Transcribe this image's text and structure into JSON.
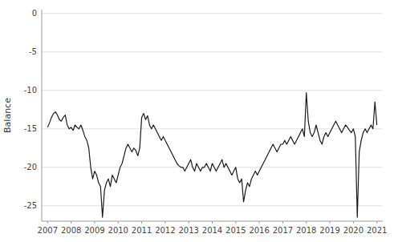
{
  "chart_data": {
    "type": "line",
    "ylabel": "Balance",
    "color": "#1a1a1a",
    "grid": true,
    "xlim": [
      2006.75,
      2021.25
    ],
    "xticks": [
      2007,
      2008,
      2009,
      2010,
      2011,
      2012,
      2013,
      2014,
      2015,
      2016,
      2017,
      2018,
      2019,
      2020,
      2021
    ],
    "ylim": [
      -27,
      0.5
    ],
    "yticks": [
      0,
      -5,
      -10,
      -15,
      -20,
      -25
    ],
    "x": [
      2007,
      2007.0833333333333,
      2007.1666666666667,
      2007.25,
      2007.3333333333333,
      2007.4166666666667,
      2007.5,
      2007.5833333333333,
      2007.6666666666667,
      2007.75,
      2007.8333333333333,
      2007.9166666666667,
      2008,
      2008.0833333333333,
      2008.1666666666667,
      2008.25,
      2008.3333333333333,
      2008.4166666666667,
      2008.5,
      2008.5833333333333,
      2008.6666666666667,
      2008.75,
      2008.8333333333333,
      2008.9166666666667,
      2009,
      2009.0833333333333,
      2009.1666666666667,
      2009.25,
      2009.3333333333333,
      2009.4166666666667,
      2009.5,
      2009.5833333333333,
      2009.6666666666667,
      2009.75,
      2009.8333333333333,
      2009.9166666666667,
      2010,
      2010.0833333333333,
      2010.1666666666667,
      2010.25,
      2010.3333333333333,
      2010.4166666666667,
      2010.5,
      2010.5833333333333,
      2010.6666666666667,
      2010.75,
      2010.8333333333333,
      2010.9166666666667,
      2011,
      2011.0833333333333,
      2011.1666666666667,
      2011.25,
      2011.3333333333333,
      2011.4166666666667,
      2011.5,
      2011.5833333333333,
      2011.6666666666667,
      2011.75,
      2011.8333333333333,
      2011.9166666666667,
      2012,
      2012.0833333333333,
      2012.1666666666667,
      2012.25,
      2012.3333333333333,
      2012.4166666666667,
      2012.5,
      2012.5833333333333,
      2012.6666666666667,
      2012.75,
      2012.8333333333333,
      2012.9166666666667,
      2013,
      2013.0833333333333,
      2013.1666666666667,
      2013.25,
      2013.3333333333333,
      2013.4166666666667,
      2013.5,
      2013.5833333333333,
      2013.6666666666667,
      2013.75,
      2013.8333333333333,
      2013.9166666666667,
      2014,
      2014.0833333333333,
      2014.1666666666667,
      2014.25,
      2014.3333333333333,
      2014.4166666666667,
      2014.5,
      2014.5833333333333,
      2014.6666666666667,
      2014.75,
      2014.8333333333333,
      2014.9166666666667,
      2015,
      2015.0833333333333,
      2015.1666666666667,
      2015.25,
      2015.3333333333333,
      2015.4166666666667,
      2015.5,
      2015.5833333333333,
      2015.6666666666667,
      2015.75,
      2015.8333333333333,
      2015.9166666666667,
      2016,
      2016.0833333333333,
      2016.1666666666667,
      2016.25,
      2016.3333333333333,
      2016.4166666666667,
      2016.5,
      2016.5833333333333,
      2016.6666666666667,
      2016.75,
      2016.8333333333333,
      2016.9166666666667,
      2017,
      2017.0833333333333,
      2017.1666666666667,
      2017.25,
      2017.3333333333333,
      2017.4166666666667,
      2017.5,
      2017.5833333333333,
      2017.6666666666667,
      2017.75,
      2017.8333333333333,
      2017.9166666666667,
      2018,
      2018.0833333333333,
      2018.1666666666667,
      2018.25,
      2018.3333333333333,
      2018.4166666666667,
      2018.5,
      2018.5833333333333,
      2018.6666666666667,
      2018.75,
      2018.8333333333333,
      2018.9166666666667,
      2019,
      2019.0833333333333,
      2019.1666666666667,
      2019.25,
      2019.3333333333333,
      2019.4166666666667,
      2019.5,
      2019.5833333333333,
      2019.6666666666667,
      2019.75,
      2019.8333333333333,
      2019.9166666666667,
      2020,
      2020.0833333333333,
      2020.1666666666667,
      2020.25,
      2020.3333333333333,
      2020.4166666666667,
      2020.5,
      2020.5833333333333,
      2020.6666666666667,
      2020.75,
      2020.8333333333333,
      2020.9166666666667,
      2021
    ],
    "values": [
      -14.8,
      -14.2,
      -13.5,
      -13.0,
      -12.8,
      -13.2,
      -13.8,
      -14.0,
      -13.5,
      -13.2,
      -14.5,
      -15.0,
      -14.8,
      -15.2,
      -14.5,
      -14.8,
      -15.0,
      -14.5,
      -15.2,
      -16.0,
      -16.5,
      -17.5,
      -20.0,
      -21.5,
      -20.5,
      -21.0,
      -22.0,
      -22.5,
      -26.5,
      -23.0,
      -22.0,
      -21.5,
      -22.5,
      -21.0,
      -21.5,
      -22.0,
      -21.0,
      -20.0,
      -19.5,
      -18.5,
      -17.5,
      -17.0,
      -17.5,
      -18.0,
      -17.5,
      -17.8,
      -18.5,
      -17.5,
      -13.5,
      -13.0,
      -13.8,
      -13.3,
      -14.5,
      -15.0,
      -14.5,
      -15.0,
      -15.5,
      -16.0,
      -16.5,
      -16.0,
      -16.5,
      -17.0,
      -17.5,
      -18.0,
      -18.5,
      -19.0,
      -19.5,
      -19.8,
      -20.0,
      -20.0,
      -20.5,
      -20.0,
      -19.5,
      -19.0,
      -20.0,
      -20.5,
      -19.5,
      -20.0,
      -20.5,
      -20.0,
      -20.0,
      -19.5,
      -20.0,
      -20.5,
      -19.5,
      -20.0,
      -20.5,
      -20.0,
      -19.5,
      -19.0,
      -20.0,
      -19.5,
      -20.0,
      -20.5,
      -21.0,
      -20.5,
      -20.0,
      -21.5,
      -22.0,
      -21.5,
      -24.5,
      -23.0,
      -22.0,
      -22.5,
      -21.5,
      -21.0,
      -20.5,
      -21.0,
      -20.5,
      -20.0,
      -19.5,
      -19.0,
      -18.5,
      -18.0,
      -17.5,
      -17.0,
      -17.5,
      -18.0,
      -17.5,
      -17.0,
      -17.0,
      -16.5,
      -17.0,
      -16.5,
      -16.0,
      -16.5,
      -17.0,
      -16.5,
      -16.0,
      -15.5,
      -15.0,
      -16.0,
      -10.3,
      -14.0,
      -15.5,
      -16.0,
      -15.5,
      -14.5,
      -15.5,
      -16.5,
      -17.0,
      -16.0,
      -15.5,
      -16.0,
      -15.5,
      -15.0,
      -14.5,
      -14.0,
      -14.5,
      -15.0,
      -15.5,
      -15.0,
      -14.5,
      -14.8,
      -15.2,
      -15.5,
      -15.0,
      -16.0,
      -26.5,
      -18.0,
      -16.5,
      -15.5,
      -15.0,
      -15.5,
      -15.0,
      -14.5,
      -15.0,
      -11.5,
      -14.5
    ]
  }
}
